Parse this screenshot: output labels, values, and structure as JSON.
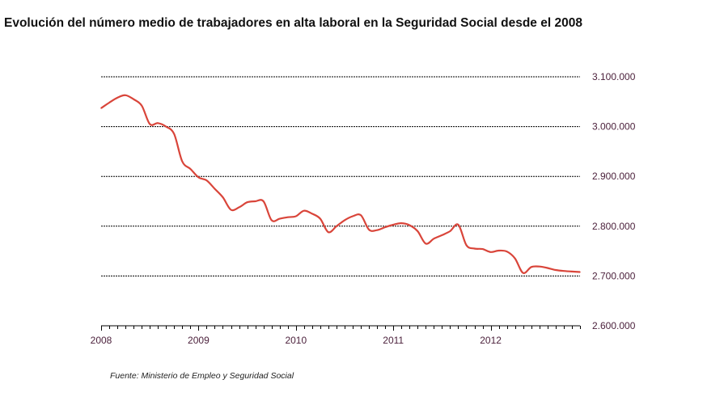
{
  "title": "Evolución del número medio de trabajadores en alta laboral en la Seguridad Social desde el 2008",
  "source": "Fuente: Ministerio de Empleo y Seguridad Social",
  "chart_data": {
    "type": "line",
    "title": "Evolución del número medio de trabajadores en alta laboral en la Seguridad Social desde el 2008",
    "xlabel": "",
    "ylabel": "",
    "x_ticks": [
      "2008",
      "2009",
      "2010",
      "2011",
      "2012"
    ],
    "y_ticks": [
      "3.100.000",
      "3.000.000",
      "2.900.000",
      "2.800.000",
      "2.700.000",
      "2.600.000"
    ],
    "y_tick_values": [
      3100000,
      3000000,
      2900000,
      2800000,
      2700000,
      2600000
    ],
    "ylim": [
      2600000,
      3100000
    ],
    "xlim": [
      2008.0,
      2012.917
    ],
    "grid": true,
    "y_axis_position": "right",
    "line_color": "#d9453a",
    "series": [
      {
        "x": [
          2008.0,
          2008.083,
          2008.167,
          2008.25,
          2008.333,
          2008.417,
          2008.5,
          2008.583,
          2008.667,
          2008.75,
          2008.833,
          2008.917,
          2009.0,
          2009.083,
          2009.167,
          2009.25,
          2009.333,
          2009.417,
          2009.5,
          2009.583,
          2009.667,
          2009.75,
          2009.833,
          2009.917,
          2010.0,
          2010.083,
          2010.167,
          2010.25,
          2010.333,
          2010.417,
          2010.5,
          2010.583,
          2010.667,
          2010.75,
          2010.833,
          2010.917,
          2011.0,
          2011.083,
          2011.167,
          2011.25,
          2011.333,
          2011.417,
          2011.5,
          2011.583,
          2011.667,
          2011.75,
          2011.833,
          2011.917,
          2012.0,
          2012.083,
          2012.167,
          2012.25,
          2012.333,
          2012.417,
          2012.5,
          2012.583,
          2012.667,
          2012.75,
          2012.833,
          2012.917
        ],
        "values": [
          3037000,
          3048000,
          3058000,
          3063000,
          3055000,
          3042000,
          3005000,
          3007000,
          3000000,
          2985000,
          2930000,
          2915000,
          2898000,
          2892000,
          2875000,
          2858000,
          2833000,
          2838000,
          2848000,
          2850000,
          2850000,
          2812000,
          2815000,
          2818000,
          2820000,
          2831000,
          2825000,
          2815000,
          2788000,
          2800000,
          2812000,
          2820000,
          2822000,
          2793000,
          2792000,
          2798000,
          2803000,
          2806000,
          2802000,
          2790000,
          2765000,
          2775000,
          2782000,
          2790000,
          2803000,
          2762000,
          2755000,
          2754000,
          2748000,
          2751000,
          2749000,
          2735000,
          2706000,
          2718000,
          2719000,
          2716000,
          2712000,
          2710000,
          2709000,
          2708000
        ]
      }
    ]
  }
}
